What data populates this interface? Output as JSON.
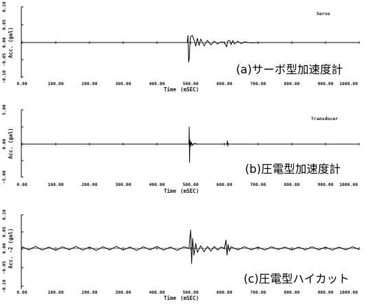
{
  "chart_data": [
    {
      "type": "line",
      "panel": "a",
      "caption": "(a)サーボ型加速度計",
      "legend": "Servo",
      "xlabel": "Time",
      "xunit": "(mSEC)",
      "ylabel": "Acc. (gal)",
      "xlim": [
        0,
        1000
      ],
      "ylim": [
        -0.1,
        0.1
      ],
      "x_ticks": [
        "0.00",
        "100.00",
        "200.00",
        "300.00",
        "400.00",
        "500.00",
        "600.00",
        "700.00",
        "800.00",
        "900.00",
        "1000.00"
      ],
      "y_ticks": [
        "0.10",
        "0.05",
        "0.00",
        "-0.05",
        "-0.10"
      ],
      "series": [
        {
          "x": [
            0,
            480,
            490,
            492,
            494,
            496,
            499,
            502,
            505,
            510,
            515,
            520,
            525,
            530,
            540,
            550,
            560,
            570,
            580,
            590,
            600,
            607,
            610,
            613,
            617,
            620,
            625,
            630,
            640,
            650,
            660,
            680,
            700,
            1000
          ],
          "y": [
            0,
            0,
            0,
            0.02,
            -0.055,
            -0.045,
            0.015,
            0.018,
            0.02,
            0.008,
            -0.01,
            0.012,
            -0.008,
            0.01,
            -0.009,
            0.006,
            -0.007,
            0.004,
            -0.004,
            0.002,
            0,
            -0.012,
            0.004,
            0.006,
            0.004,
            -0.006,
            0.006,
            -0.004,
            0.004,
            -0.003,
            0.002,
            -0.001,
            0,
            0
          ]
        }
      ]
    },
    {
      "type": "line",
      "panel": "b",
      "caption": "(b)圧電型加速度計",
      "legend": "Transducer",
      "xlabel": "Time",
      "xunit": "(mSEC)",
      "ylabel": "Acc. (gal)",
      "xlim": [
        0,
        1000
      ],
      "ylim": [
        -5.0,
        5.0
      ],
      "x_ticks": [
        "0.00",
        "100.00",
        "200.00",
        "300.00",
        "400.00",
        "500.00",
        "600.00",
        "700.00",
        "800.00",
        "900.00",
        "1000.00"
      ],
      "y_ticks": [
        "5.00",
        "",
        "0.00",
        "",
        "-5.00"
      ],
      "series": [
        {
          "x": [
            0,
            490,
            495,
            496,
            497,
            498,
            500,
            502,
            505,
            510,
            520,
            600,
            608,
            609,
            610,
            611,
            612,
            620,
            1000
          ],
          "y": [
            0,
            0,
            0,
            2.5,
            -2.7,
            0.6,
            -0.3,
            0.3,
            -0.2,
            0.1,
            0,
            0,
            0,
            0.5,
            -0.3,
            0.15,
            0,
            0,
            0
          ]
        }
      ]
    },
    {
      "type": "line",
      "panel": "c",
      "caption": "(c)圧電型ハイカット",
      "legend": "",
      "xlabel": "Time",
      "xunit": "(mSEC)",
      "ylabel": "Acc. -2 (gal)",
      "xlim": [
        0,
        1000
      ],
      "ylim": [
        -0.1,
        0.1
      ],
      "x_ticks": [
        "0.00",
        "100.00",
        "200.00",
        "300.00",
        "400.00",
        "500.00",
        "600.00",
        "700.00",
        "800.00",
        "900.00",
        "1000.00"
      ],
      "y_ticks": [
        "0.10",
        "0.05",
        "0.00",
        "-0.05",
        "-0.10"
      ],
      "series": [
        {
          "x": [
            0,
            20,
            40,
            60,
            80,
            100,
            120,
            140,
            160,
            180,
            200,
            220,
            240,
            260,
            280,
            300,
            320,
            340,
            360,
            380,
            400,
            420,
            440,
            460,
            480,
            495,
            500,
            503,
            506,
            510,
            515,
            520,
            530,
            540,
            550,
            560,
            570,
            580,
            590,
            600,
            605,
            608,
            611,
            615,
            620,
            640,
            660,
            680,
            700,
            720,
            740,
            760,
            780,
            800,
            820,
            840,
            860,
            880,
            900,
            920,
            940,
            960,
            980,
            1000
          ],
          "y": [
            0.005,
            -0.004,
            0.006,
            -0.005,
            0.004,
            -0.006,
            0.005,
            -0.004,
            0.006,
            -0.005,
            0.004,
            -0.006,
            0.005,
            -0.004,
            0.006,
            -0.005,
            0.004,
            -0.006,
            0.005,
            -0.004,
            0.006,
            -0.005,
            0.004,
            -0.006,
            0.005,
            0.0,
            0.055,
            -0.045,
            0.03,
            -0.02,
            0.015,
            -0.012,
            0.008,
            -0.01,
            0.006,
            -0.008,
            0.006,
            -0.005,
            0.004,
            0.0,
            0.025,
            -0.02,
            0.012,
            -0.008,
            0.005,
            -0.004,
            0.005,
            -0.004,
            0.004,
            -0.005,
            0.005,
            -0.003,
            0.004,
            -0.005,
            0.004,
            -0.004,
            0.005,
            -0.004,
            0.004,
            -0.005,
            0.004,
            -0.004,
            0.005,
            -0.003
          ]
        }
      ]
    }
  ]
}
